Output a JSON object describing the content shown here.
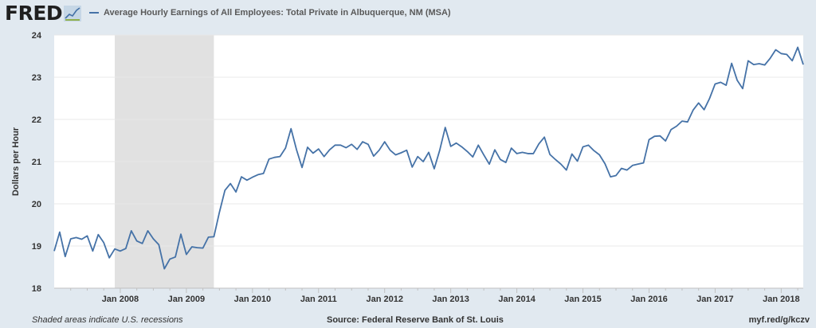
{
  "header": {
    "logo_text": "FRED",
    "logo_icon": "fred-graph-icon"
  },
  "colors": {
    "line": "#4572a7",
    "recession": "#e1e1e1",
    "plot_bg": "#ffffff",
    "page_bg": "#e1e9f0",
    "grid": "#e8e8e8"
  },
  "chart_data": {
    "type": "line",
    "title": "",
    "series": [
      {
        "name": "Average Hourly Earnings of All Employees: Total Private in Albuquerque, NM (MSA)",
        "x_start": "2007-01",
        "frequency": "monthly",
        "values": [
          18.88,
          19.33,
          18.75,
          19.17,
          19.2,
          19.16,
          19.24,
          18.88,
          19.27,
          19.08,
          18.72,
          18.93,
          18.88,
          18.94,
          19.36,
          19.12,
          19.06,
          19.36,
          19.17,
          19.03,
          18.46,
          18.69,
          18.74,
          19.28,
          18.8,
          18.98,
          18.96,
          18.95,
          19.21,
          19.22,
          19.8,
          20.32,
          20.48,
          20.28,
          20.64,
          20.56,
          20.63,
          20.69,
          20.72,
          21.06,
          21.1,
          21.12,
          21.32,
          21.78,
          21.28,
          20.86,
          21.34,
          21.2,
          21.3,
          21.12,
          21.28,
          21.39,
          21.39,
          21.33,
          21.41,
          21.29,
          21.47,
          21.41,
          21.13,
          21.27,
          21.47,
          21.27,
          21.16,
          21.21,
          21.27,
          20.87,
          21.12,
          21.0,
          21.22,
          20.83,
          21.27,
          21.81,
          21.36,
          21.44,
          21.35,
          21.24,
          21.11,
          21.39,
          21.16,
          20.94,
          21.28,
          21.05,
          20.98,
          21.32,
          21.19,
          21.22,
          21.19,
          21.19,
          21.42,
          21.58,
          21.17,
          21.05,
          20.94,
          20.8,
          21.18,
          21.01,
          21.35,
          21.39,
          21.26,
          21.16,
          20.95,
          20.64,
          20.67,
          20.84,
          20.8,
          20.91,
          20.94,
          20.97,
          21.52,
          21.6,
          21.61,
          21.49,
          21.76,
          21.84,
          21.96,
          21.94,
          22.22,
          22.39,
          22.23,
          22.5,
          22.84,
          22.88,
          22.81,
          23.33,
          22.93,
          22.73,
          23.39,
          23.3,
          23.32,
          23.29,
          23.45,
          23.65,
          23.56,
          23.54,
          23.39,
          23.71,
          23.3
        ]
      }
    ],
    "x_tick_labels": [
      "Jan 2008",
      "Jan 2009",
      "Jan 2010",
      "Jan 2011",
      "Jan 2012",
      "Jan 2013",
      "Jan 2014",
      "Jan 2015",
      "Jan 2016",
      "Jan 2017",
      "Jan 2018"
    ],
    "x_tick_years": [
      2008,
      2009,
      2010,
      2011,
      2012,
      2013,
      2014,
      2015,
      2016,
      2017,
      2018
    ],
    "y_ticks": [
      18,
      19,
      20,
      21,
      22,
      23,
      24
    ],
    "ylim": [
      18,
      24
    ],
    "xlim": [
      "2007-01",
      "2018-05"
    ],
    "ylabel": "Dollars per Hour",
    "xlabel": "",
    "recessions": [
      {
        "start": "2007-12",
        "end": "2009-06"
      }
    ],
    "grid": "horizontal",
    "legend_position": "top-left"
  },
  "footer": {
    "note": "Shaded areas indicate U.S. recessions",
    "source": "Source: Federal Reserve Bank of St. Louis",
    "short_url": "myf.red/g/kczv"
  }
}
